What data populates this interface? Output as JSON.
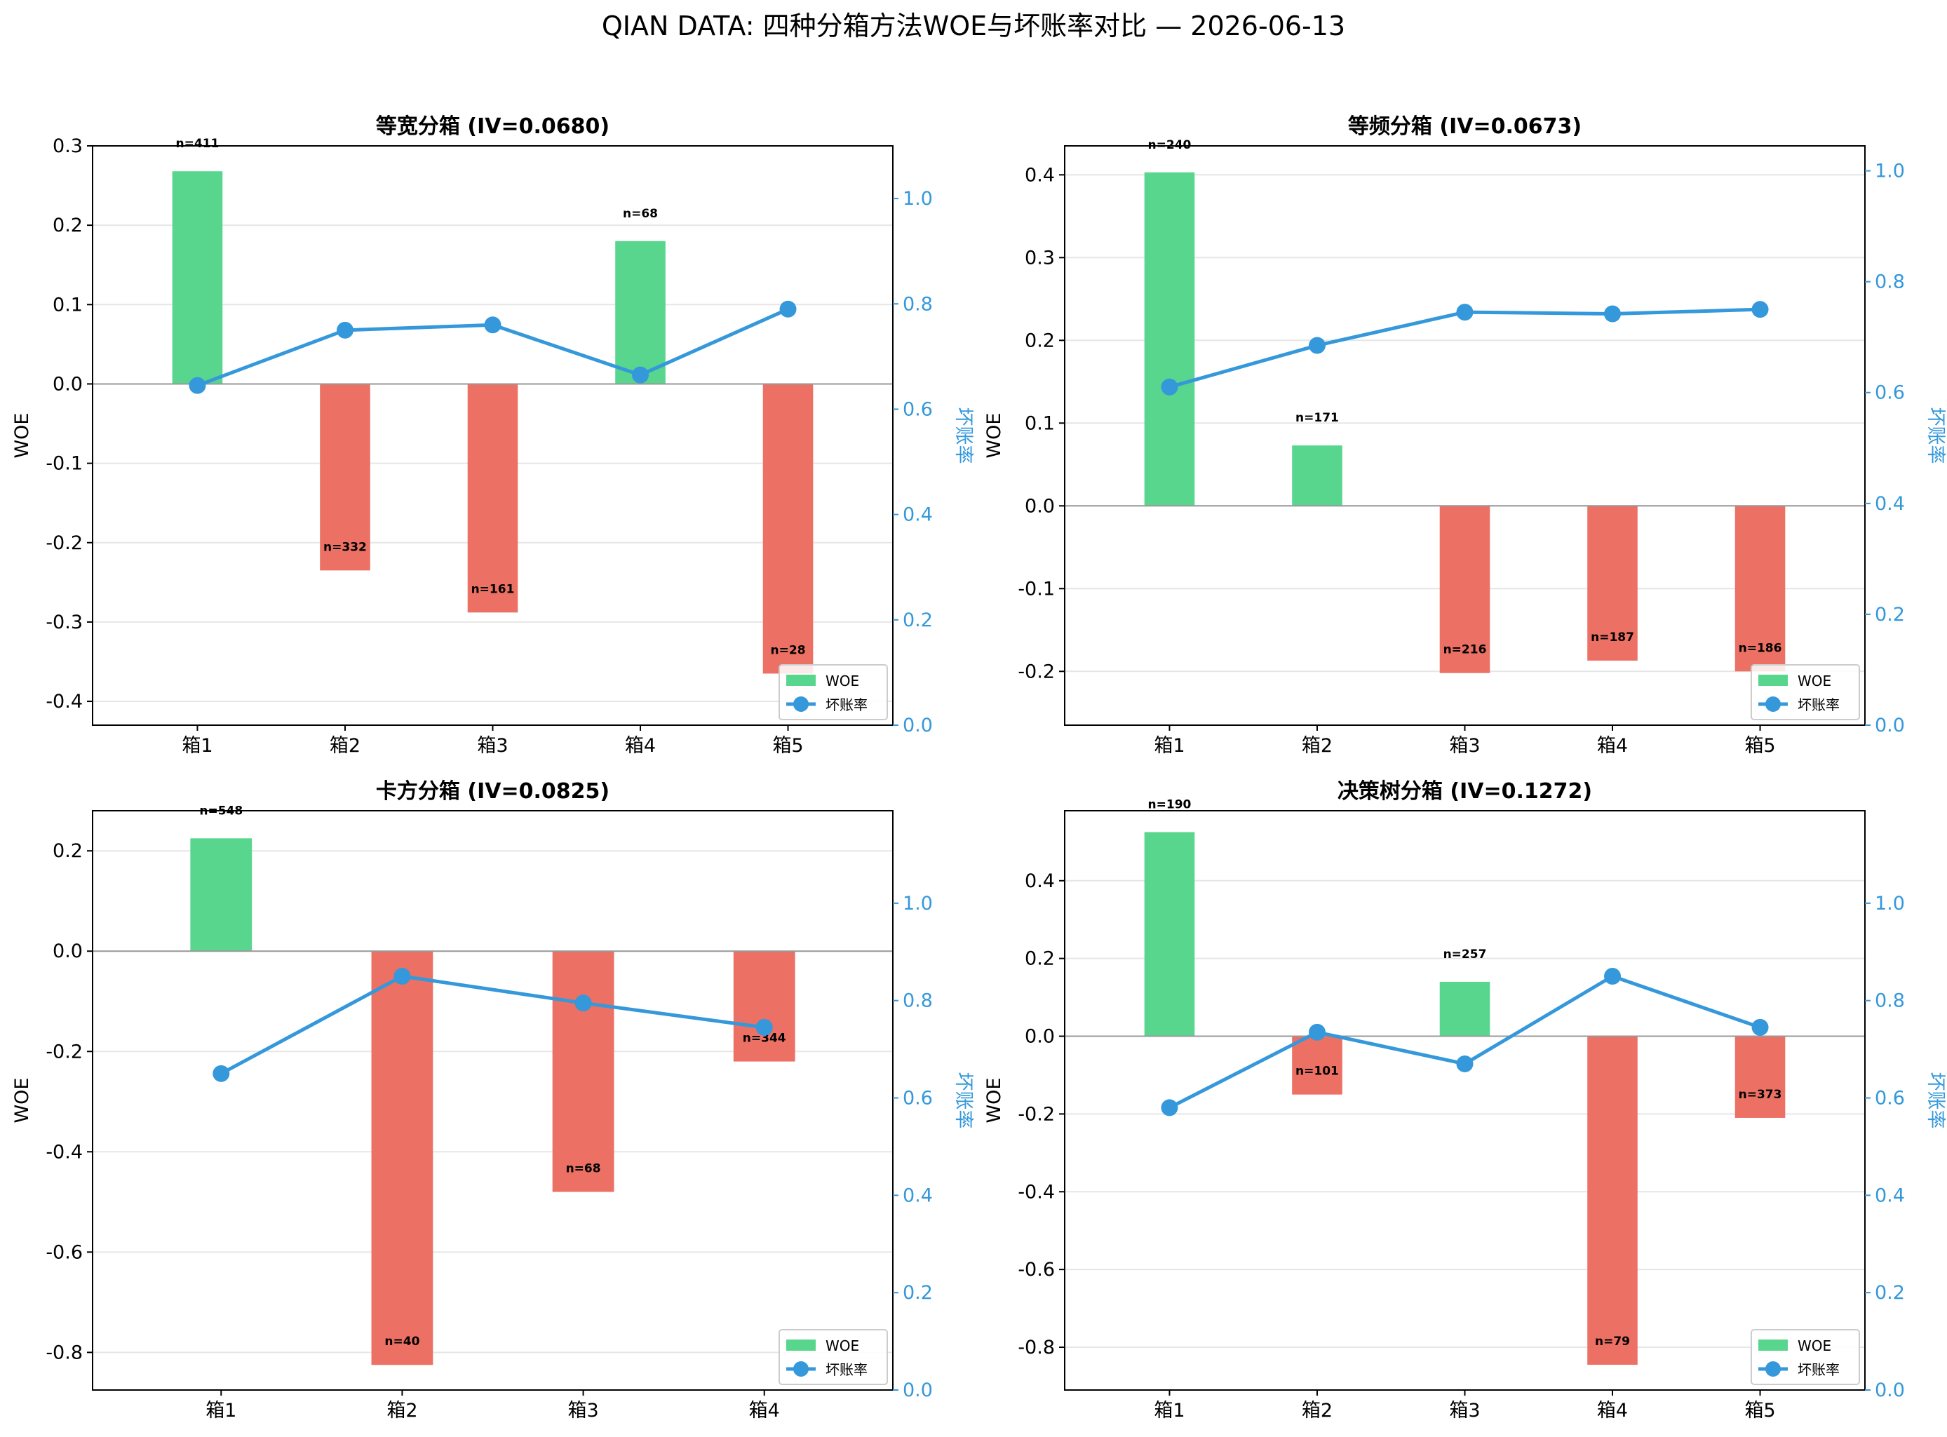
{
  "suptitle": "QIAN DATA: 四种分箱方法WOE与坏账率对比 — 2026-06-13",
  "colors": {
    "positive_bar": "#58d68d",
    "negative_bar": "#ec7063",
    "line": "#3498db",
    "zero_line": "#999999",
    "grid": "#e6e6e6"
  },
  "chart_data": [
    {
      "type": "bar",
      "title": "等宽分箱 (IV=0.0680)",
      "ylabel": "WOE",
      "y2label": "坏账率",
      "categories": [
        "箱1",
        "箱2",
        "箱3",
        "箱4",
        "箱5"
      ],
      "series": [
        {
          "name": "WOE",
          "values": [
            0.268,
            -0.235,
            -0.288,
            0.18,
            -0.365
          ]
        },
        {
          "name": "坏账率",
          "values": [
            0.645,
            0.75,
            0.76,
            0.665,
            0.79
          ]
        }
      ],
      "counts": [
        "n=411",
        "n=332",
        "n=161",
        "n=68",
        "n=28"
      ],
      "ylim": [
        -0.43,
        0.3
      ],
      "y2lim": [
        0,
        1.1
      ],
      "yticks": [
        "0.3",
        "0.2",
        "0.1",
        "0.0",
        "-0.1",
        "-0.2",
        "-0.3",
        "-0.4"
      ],
      "y2ticks": [
        "0.0",
        "0.2",
        "0.4",
        "0.6",
        "0.8",
        "1.0"
      ],
      "legend": "lower-right"
    },
    {
      "type": "bar",
      "title": "等频分箱 (IV=0.0673)",
      "ylabel": "WOE",
      "y2label": "坏账率",
      "categories": [
        "箱1",
        "箱2",
        "箱3",
        "箱4",
        "箱5"
      ],
      "series": [
        {
          "name": "WOE",
          "values": [
            0.403,
            0.073,
            -0.202,
            -0.187,
            -0.2
          ]
        },
        {
          "name": "坏账率",
          "values": [
            0.61,
            0.685,
            0.745,
            0.742,
            0.75
          ]
        }
      ],
      "counts": [
        "n=240",
        "n=171",
        "n=216",
        "n=187",
        "n=186"
      ],
      "ylim": [
        -0.265,
        0.435
      ],
      "y2lim": [
        0,
        1.045
      ],
      "yticks": [
        "0.4",
        "0.3",
        "0.2",
        "0.1",
        "0.0",
        "-0.1",
        "-0.2"
      ],
      "y2ticks": [
        "0.0",
        "0.2",
        "0.4",
        "0.6",
        "0.8",
        "1.0"
      ],
      "legend": "lower-right"
    },
    {
      "type": "bar",
      "title": "卡方分箱 (IV=0.0825)",
      "ylabel": "WOE",
      "y2label": "坏账率",
      "categories": [
        "箱1",
        "箱2",
        "箱3",
        "箱4"
      ],
      "series": [
        {
          "name": "WOE",
          "values": [
            0.225,
            -0.825,
            -0.48,
            -0.22
          ]
        },
        {
          "name": "坏账率",
          "values": [
            0.65,
            0.85,
            0.795,
            0.745
          ]
        }
      ],
      "counts": [
        "n=548",
        "n=40",
        "n=68",
        "n=344"
      ],
      "ylim": [
        -0.875,
        0.28
      ],
      "y2lim": [
        0,
        1.19
      ],
      "yticks": [
        "0.2",
        "0.0",
        "-0.2",
        "-0.4",
        "-0.6",
        "-0.8"
      ],
      "y2ticks": [
        "0.0",
        "0.2",
        "0.4",
        "0.6",
        "0.8",
        "1.0"
      ],
      "legend": "lower-right"
    },
    {
      "type": "bar",
      "title": "决策树分箱 (IV=0.1272)",
      "ylabel": "WOE",
      "y2label": "坏账率",
      "categories": [
        "箱1",
        "箱2",
        "箱3",
        "箱4",
        "箱5"
      ],
      "series": [
        {
          "name": "WOE",
          "values": [
            0.525,
            -0.15,
            0.14,
            -0.845,
            -0.21
          ]
        },
        {
          "name": "坏账率",
          "values": [
            0.58,
            0.735,
            0.67,
            0.85,
            0.745
          ]
        }
      ],
      "counts": [
        "n=190",
        "n=101",
        "n=257",
        "n=79",
        "n=373"
      ],
      "ylim": [
        -0.91,
        0.58
      ],
      "y2lim": [
        0,
        1.19
      ],
      "yticks": [
        "0.4",
        "0.2",
        "0.0",
        "-0.2",
        "-0.4",
        "-0.6",
        "-0.8"
      ],
      "y2ticks": [
        "0.0",
        "0.2",
        "0.4",
        "0.6",
        "0.8",
        "1.0"
      ],
      "legend": "lower-right"
    }
  ]
}
